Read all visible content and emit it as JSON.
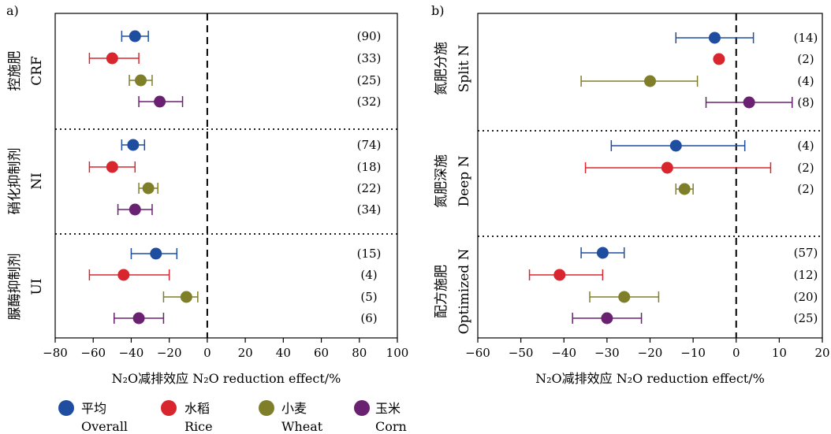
{
  "chart_data": [
    {
      "type": "scatter",
      "panel_label": "a)",
      "xlabel": "N₂O减排效应 N₂O reduction effect/%",
      "xlim": [
        -80,
        100
      ],
      "xticks": [
        -80,
        -60,
        -40,
        -20,
        0,
        20,
        40,
        60,
        80,
        100
      ],
      "groups": [
        {
          "label": "控施肥",
          "label_en": "CRF",
          "points": [
            {
              "series": "Overall",
              "mean": -38,
              "lo": -45,
              "hi": -31,
              "n": "(90)"
            },
            {
              "series": "Rice",
              "mean": -50,
              "lo": -62,
              "hi": -36,
              "n": "(33)"
            },
            {
              "series": "Wheat",
              "mean": -35,
              "lo": -41,
              "hi": -29,
              "n": "(25)"
            },
            {
              "series": "Corn",
              "mean": -25,
              "lo": -36,
              "hi": -13,
              "n": "(32)"
            }
          ]
        },
        {
          "label": "硝化抑制剂",
          "label_en": "NI",
          "points": [
            {
              "series": "Overall",
              "mean": -39,
              "lo": -45,
              "hi": -33,
              "n": "(74)"
            },
            {
              "series": "Rice",
              "mean": -50,
              "lo": -62,
              "hi": -38,
              "n": "(18)"
            },
            {
              "series": "Wheat",
              "mean": -31,
              "lo": -36,
              "hi": -26,
              "n": "(22)"
            },
            {
              "series": "Corn",
              "mean": -38,
              "lo": -47,
              "hi": -29,
              "n": "(34)"
            }
          ]
        },
        {
          "label": "脲酶抑制剂",
          "label_en": "UI",
          "points": [
            {
              "series": "Overall",
              "mean": -27,
              "lo": -40,
              "hi": -16,
              "n": "(15)"
            },
            {
              "series": "Rice",
              "mean": -44,
              "lo": -62,
              "hi": -20,
              "n": "(4)"
            },
            {
              "series": "Wheat",
              "mean": -11,
              "lo": -23,
              "hi": -5,
              "n": "(5)"
            },
            {
              "series": "Corn",
              "mean": -36,
              "lo": -49,
              "hi": -23,
              "n": "(6)"
            }
          ]
        }
      ]
    },
    {
      "type": "scatter",
      "panel_label": "b)",
      "xlabel": "N₂O减排效应 N₂O reduction effect/%",
      "xlim": [
        -60,
        20
      ],
      "xticks": [
        -60,
        -50,
        -40,
        -30,
        -20,
        -10,
        0,
        10,
        20
      ],
      "groups": [
        {
          "label": "氮肥分施",
          "label_en": "Split N",
          "points": [
            {
              "series": "Overall",
              "mean": -5,
              "lo": -14,
              "hi": 4,
              "n": "(14)"
            },
            {
              "series": "Rice",
              "mean": -4,
              "lo": -4,
              "hi": -4,
              "n": "(2)"
            },
            {
              "series": "Wheat",
              "mean": -20,
              "lo": -36,
              "hi": -9,
              "n": "(4)"
            },
            {
              "series": "Corn",
              "mean": 3,
              "lo": -7,
              "hi": 13,
              "n": "(8)"
            }
          ]
        },
        {
          "label": "氮肥深施",
          "label_en": "Deep N",
          "points": [
            {
              "series": "Overall",
              "mean": -14,
              "lo": -29,
              "hi": 2,
              "n": "(4)"
            },
            {
              "series": "Rice",
              "mean": -16,
              "lo": -35,
              "hi": 8,
              "n": "(2)"
            },
            {
              "series": "Wheat",
              "mean": -12,
              "lo": -14,
              "hi": -10,
              "n": "(2)"
            }
          ]
        },
        {
          "label": "配方施肥",
          "label_en": "Optimized N",
          "points": [
            {
              "series": "Overall",
              "mean": -31,
              "lo": -36,
              "hi": -26,
              "n": "(57)"
            },
            {
              "series": "Rice",
              "mean": -41,
              "lo": -48,
              "hi": -31,
              "n": "(12)"
            },
            {
              "series": "Wheat",
              "mean": -26,
              "lo": -34,
              "hi": -18,
              "n": "(20)"
            },
            {
              "series": "Corn",
              "mean": -30,
              "lo": -38,
              "hi": -22,
              "n": "(25)"
            }
          ]
        }
      ]
    }
  ],
  "legend": [
    {
      "series": "Overall",
      "zh": "平均",
      "en": "Overall",
      "color": "#1f4ea1"
    },
    {
      "series": "Rice",
      "zh": "水稻",
      "en": "Rice",
      "color": "#d9262e"
    },
    {
      "series": "Wheat",
      "zh": "小麦",
      "en": "Wheat",
      "color": "#7f7f2a"
    },
    {
      "series": "Corn",
      "zh": "玉米",
      "en": "Corn",
      "color": "#6a2171"
    }
  ]
}
